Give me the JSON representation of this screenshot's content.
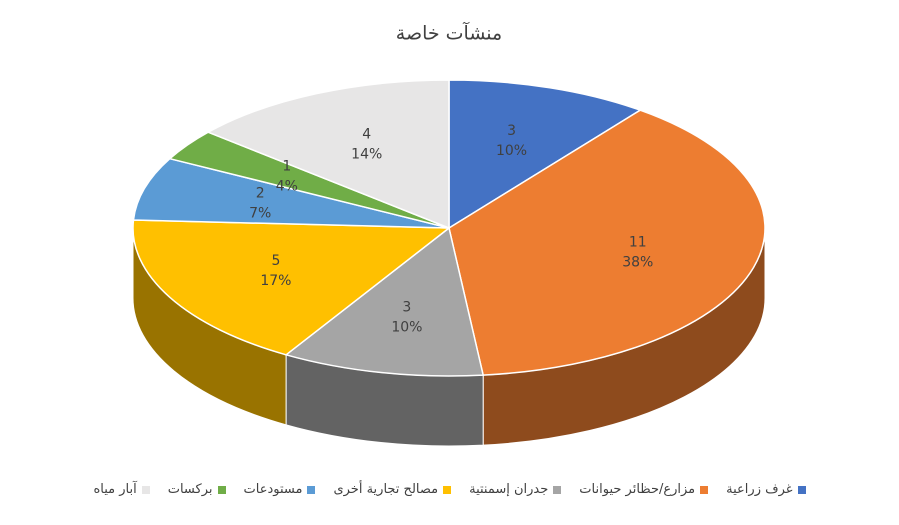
{
  "chart_data": {
    "type": "pie3d",
    "title": "منشآت خاصة",
    "categories": [
      "غرف زراعية",
      "مزارع/حظائر حيوانات",
      "جدران إسمنتية",
      "مصالح تجارية أخرى",
      "مستودعات",
      "بركسات",
      "آبار مياه"
    ],
    "values": [
      3,
      11,
      3,
      5,
      2,
      1,
      4
    ],
    "percentages": [
      10,
      38,
      10,
      17,
      7,
      4,
      14
    ],
    "percentage_labels": [
      "10%",
      "38%",
      "10%",
      "17%",
      "7%",
      "4%",
      "14%"
    ],
    "colors": [
      "#4472c4",
      "#ed7d31",
      "#a5a5a5",
      "#ffc000",
      "#5b9bd5",
      "#70ad47",
      "#e7e6e6"
    ]
  }
}
